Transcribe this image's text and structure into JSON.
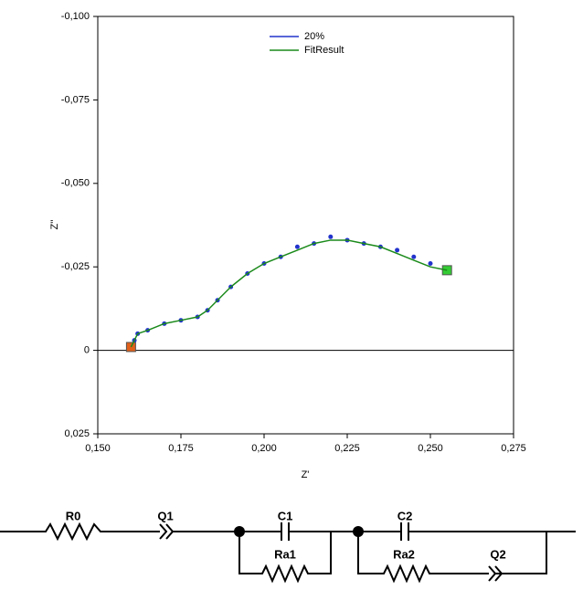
{
  "chart_data": {
    "type": "scatter",
    "x_label": "Z'",
    "y_label": "Z''",
    "xlim": [
      0.15,
      0.275
    ],
    "xticks": [
      {
        "value": 0.15,
        "label": "0,150"
      },
      {
        "value": 0.175,
        "label": "0,175"
      },
      {
        "value": 0.2,
        "label": "0,200"
      },
      {
        "value": 0.225,
        "label": "0,225"
      },
      {
        "value": 0.25,
        "label": "0,250"
      },
      {
        "value": 0.275,
        "label": "0,275"
      }
    ],
    "ylim": [
      0.025,
      -0.1
    ],
    "yticks": [
      {
        "value": -0.1,
        "label": "-0,100"
      },
      {
        "value": -0.075,
        "label": "-0,075"
      },
      {
        "value": -0.05,
        "label": "-0,050"
      },
      {
        "value": -0.025,
        "label": "-0,025"
      },
      0,
      {
        "value": 0.025,
        "label": "0,025"
      }
    ],
    "legend": "top",
    "series": [
      {
        "name": "20%",
        "color": "#2233cc",
        "mode": "markers",
        "x": [
          0.16,
          0.161,
          0.162,
          0.165,
          0.17,
          0.175,
          0.18,
          0.183,
          0.186,
          0.19,
          0.195,
          0.2,
          0.205,
          0.21,
          0.215,
          0.22,
          0.225,
          0.23,
          0.235,
          0.24,
          0.245,
          0.25,
          0.255
        ],
        "values": [
          -0.001,
          -0.003,
          -0.005,
          -0.006,
          -0.008,
          -0.009,
          -0.01,
          -0.012,
          -0.015,
          -0.019,
          -0.023,
          -0.026,
          -0.028,
          -0.031,
          -0.032,
          -0.034,
          -0.033,
          -0.032,
          -0.031,
          -0.03,
          -0.028,
          -0.026,
          -0.024
        ]
      },
      {
        "name": "FitResult",
        "color": "#1a8a1a",
        "mode": "line",
        "x": [
          0.16,
          0.162,
          0.165,
          0.17,
          0.175,
          0.18,
          0.183,
          0.186,
          0.19,
          0.195,
          0.2,
          0.205,
          0.21,
          0.215,
          0.22,
          0.225,
          0.23,
          0.235,
          0.24,
          0.245,
          0.25,
          0.255
        ],
        "values": [
          -0.001,
          -0.005,
          -0.006,
          -0.008,
          -0.009,
          -0.01,
          -0.012,
          -0.015,
          -0.019,
          -0.023,
          -0.026,
          -0.028,
          -0.03,
          -0.032,
          -0.033,
          -0.033,
          -0.032,
          -0.031,
          -0.029,
          -0.027,
          -0.025,
          -0.024
        ]
      }
    ]
  },
  "circuit": {
    "R0": "R0",
    "Q1": "Q1",
    "C1": "C1",
    "Ra1": "Ra1",
    "C2": "C2",
    "Ra2": "Ra2",
    "Q2": "Q2"
  }
}
